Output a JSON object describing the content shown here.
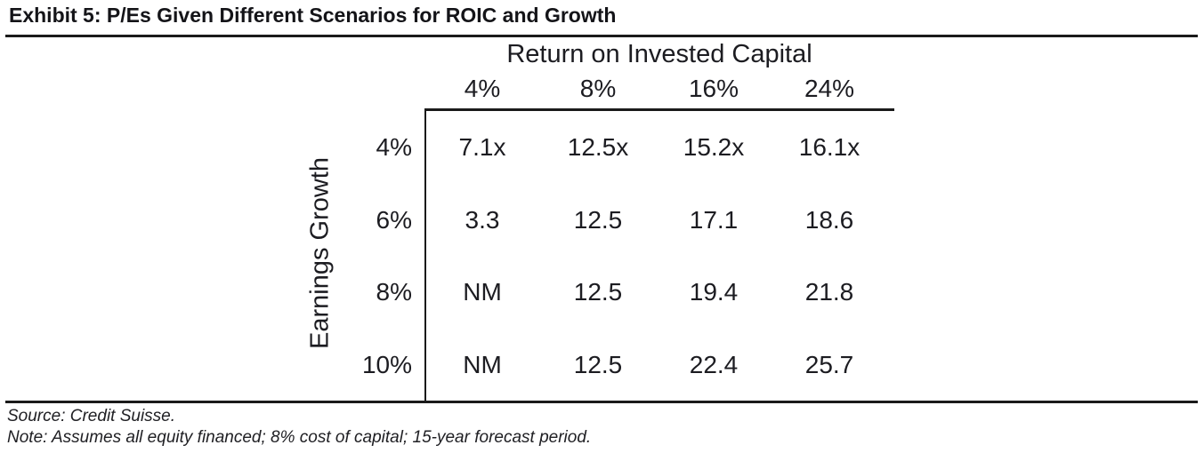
{
  "title": "Exhibit 5: P/Es Given Different Scenarios for ROIC and Growth",
  "chart_data": {
    "type": "table",
    "col_axis_title": "Return on Invested Capital",
    "row_axis_title": "Earnings Growth",
    "columns": [
      "4%",
      "8%",
      "16%",
      "24%"
    ],
    "rows": [
      {
        "label": "4%",
        "values": [
          "7.1x",
          "12.5x",
          "15.2x",
          "16.1x"
        ]
      },
      {
        "label": "6%",
        "values": [
          "3.3",
          "12.5",
          "17.1",
          "18.6"
        ]
      },
      {
        "label": "8%",
        "values": [
          "NM",
          "12.5",
          "19.4",
          "21.8"
        ]
      },
      {
        "label": "10%",
        "values": [
          "NM",
          "12.5",
          "22.4",
          "25.7"
        ]
      }
    ]
  },
  "footer": {
    "source": "Source: Credit Suisse.",
    "note": "Note: Assumes all equity financed; 8% cost of capital; 15-year forecast period."
  }
}
